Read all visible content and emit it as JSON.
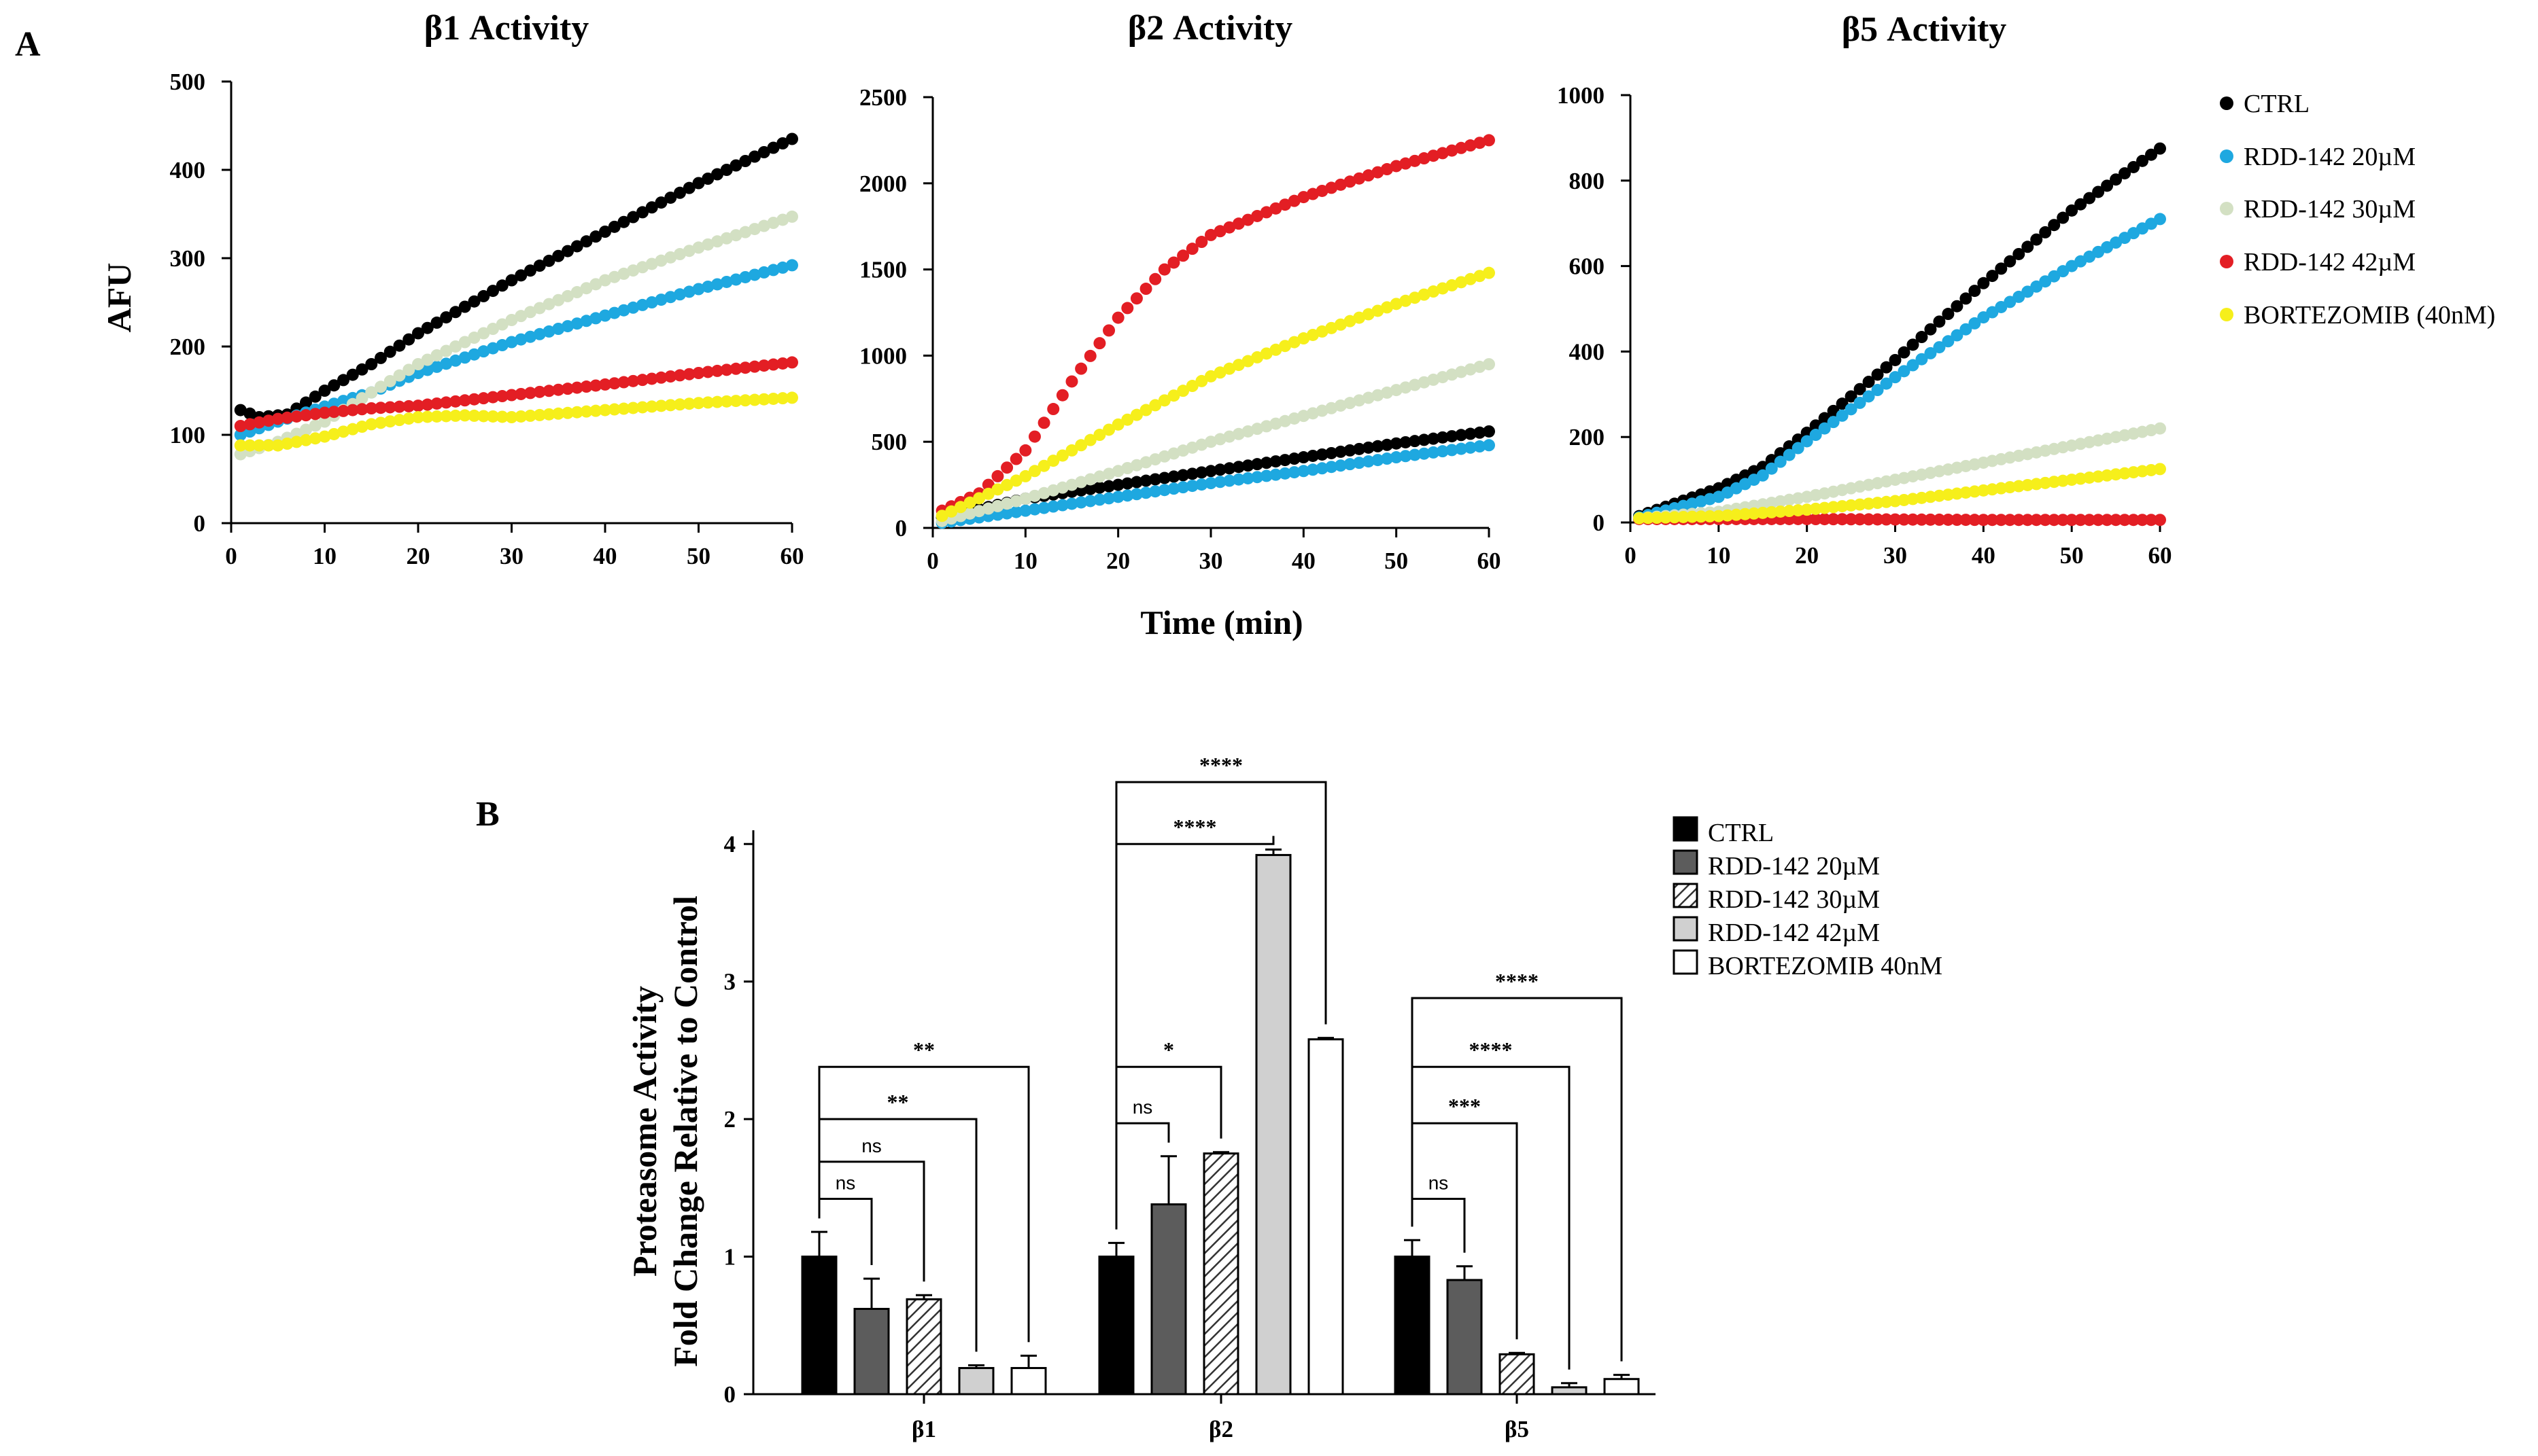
{
  "panel_labels": {
    "a": "A",
    "b": "B"
  },
  "hatch_color": "#333333",
  "chart_data": [
    {
      "type": "scatter",
      "title": "β1 Activity",
      "xlabel": "",
      "ylabel": "AFU",
      "xlim": [
        0,
        60
      ],
      "ylim": [
        0,
        500
      ],
      "xticks": [
        0,
        10,
        20,
        30,
        40,
        50,
        60
      ],
      "yticks": [
        0,
        100,
        200,
        300,
        400,
        500
      ],
      "series": [
        {
          "name": "CTRL",
          "color": "#000000",
          "curve": [
            [
              1,
              128
            ],
            [
              3,
              120
            ],
            [
              6,
              123
            ],
            [
              10,
              150
            ],
            [
              15,
              180
            ],
            [
              20,
              215
            ],
            [
              30,
              275
            ],
            [
              40,
              330
            ],
            [
              50,
              385
            ],
            [
              60,
              435
            ]
          ]
        },
        {
          "name": "RDD-142 20µM",
          "color": "#1ea8e0",
          "curve": [
            [
              1,
              100
            ],
            [
              5,
              115
            ],
            [
              10,
              132
            ],
            [
              15,
              148
            ],
            [
              20,
              170
            ],
            [
              30,
              205
            ],
            [
              40,
              235
            ],
            [
              50,
              265
            ],
            [
              60,
              292
            ]
          ]
        },
        {
          "name": "RDD-142 30µM",
          "color": "#d3e0c3",
          "curve": [
            [
              1,
              78
            ],
            [
              5,
              92
            ],
            [
              10,
              115
            ],
            [
              15,
              148
            ],
            [
              20,
              180
            ],
            [
              30,
              230
            ],
            [
              40,
              275
            ],
            [
              50,
              312
            ],
            [
              60,
              347
            ]
          ]
        },
        {
          "name": "RDD-142 42µM",
          "color": "#e31e24",
          "curve": [
            [
              1,
              110
            ],
            [
              5,
              118
            ],
            [
              10,
              125
            ],
            [
              15,
              130
            ],
            [
              20,
              133
            ],
            [
              30,
              145
            ],
            [
              40,
              157
            ],
            [
              50,
              170
            ],
            [
              60,
              182
            ]
          ]
        },
        {
          "name": "BORTEZOMIB (40nM)",
          "color": "#f6ef1b",
          "curve": [
            [
              1,
              88
            ],
            [
              5,
              88
            ],
            [
              10,
              98
            ],
            [
              15,
              112
            ],
            [
              20,
              120
            ],
            [
              25,
              122
            ],
            [
              30,
              120
            ],
            [
              40,
              128
            ],
            [
              50,
              136
            ],
            [
              60,
              142
            ]
          ]
        }
      ]
    },
    {
      "type": "scatter",
      "title": "β2 Activity",
      "xlabel": "Time (min)",
      "ylabel": "",
      "xlim": [
        0,
        60
      ],
      "ylim": [
        0,
        2500
      ],
      "xticks": [
        0,
        10,
        20,
        30,
        40,
        50,
        60
      ],
      "yticks": [
        0,
        500,
        1000,
        1500,
        2000,
        2500
      ],
      "series": [
        {
          "name": "CTRL",
          "color": "#000000",
          "curve": [
            [
              1,
              60
            ],
            [
              10,
              170
            ],
            [
              20,
              250
            ],
            [
              30,
              330
            ],
            [
              40,
              410
            ],
            [
              50,
              490
            ],
            [
              60,
              560
            ]
          ]
        },
        {
          "name": "RDD-142 20µM",
          "color": "#1ea8e0",
          "curve": [
            [
              1,
              30
            ],
            [
              10,
              100
            ],
            [
              20,
              180
            ],
            [
              30,
              260
            ],
            [
              40,
              330
            ],
            [
              50,
              410
            ],
            [
              60,
              480
            ]
          ]
        },
        {
          "name": "RDD-142 30µM",
          "color": "#d3e0c3",
          "curve": [
            [
              1,
              40
            ],
            [
              10,
              170
            ],
            [
              20,
              330
            ],
            [
              30,
              500
            ],
            [
              40,
              650
            ],
            [
              50,
              800
            ],
            [
              60,
              950
            ]
          ]
        },
        {
          "name": "RDD-142 42µM",
          "color": "#e31e24",
          "curve": [
            [
              1,
              100
            ],
            [
              5,
              200
            ],
            [
              10,
              450
            ],
            [
              15,
              850
            ],
            [
              20,
              1220
            ],
            [
              25,
              1500
            ],
            [
              30,
              1700
            ],
            [
              40,
              1920
            ],
            [
              50,
              2100
            ],
            [
              60,
              2250
            ]
          ]
        },
        {
          "name": "BORTEZOMIB (40nM)",
          "color": "#f6ef1b",
          "curve": [
            [
              1,
              70
            ],
            [
              10,
              300
            ],
            [
              20,
              600
            ],
            [
              30,
              880
            ],
            [
              40,
              1100
            ],
            [
              50,
              1300
            ],
            [
              60,
              1480
            ]
          ]
        }
      ]
    },
    {
      "type": "scatter",
      "title": "β5 Activity",
      "xlabel": "",
      "ylabel": "",
      "xlim": [
        0,
        60
      ],
      "ylim": [
        0,
        1000
      ],
      "xticks": [
        0,
        10,
        20,
        30,
        40,
        50,
        60
      ],
      "yticks": [
        0,
        200,
        400,
        600,
        800,
        1000
      ],
      "series": [
        {
          "name": "CTRL",
          "color": "#000000",
          "curve": [
            [
              1,
              15
            ],
            [
              10,
              80
            ],
            [
              15,
              130
            ],
            [
              20,
              210
            ],
            [
              30,
              380
            ],
            [
              40,
              560
            ],
            [
              50,
              730
            ],
            [
              60,
              875
            ]
          ]
        },
        {
          "name": "RDD-142 20µM",
          "color": "#1ea8e0",
          "curve": [
            [
              1,
              12
            ],
            [
              10,
              60
            ],
            [
              15,
              110
            ],
            [
              20,
              190
            ],
            [
              30,
              340
            ],
            [
              40,
              480
            ],
            [
              50,
              600
            ],
            [
              60,
              710
            ]
          ]
        },
        {
          "name": "RDD-142 30µM",
          "color": "#d3e0c3",
          "curve": [
            [
              1,
              10
            ],
            [
              10,
              25
            ],
            [
              20,
              60
            ],
            [
              30,
              100
            ],
            [
              40,
              140
            ],
            [
              50,
              180
            ],
            [
              60,
              220
            ]
          ]
        },
        {
          "name": "RDD-142 42µM",
          "color": "#e31e24",
          "curve": [
            [
              1,
              8
            ],
            [
              10,
              8
            ],
            [
              20,
              8
            ],
            [
              30,
              7
            ],
            [
              40,
              6
            ],
            [
              50,
              6
            ],
            [
              60,
              6
            ]
          ]
        },
        {
          "name": "BORTEZOMIB (40nM)",
          "color": "#f6ef1b",
          "curve": [
            [
              1,
              10
            ],
            [
              10,
              15
            ],
            [
              20,
              30
            ],
            [
              30,
              50
            ],
            [
              40,
              75
            ],
            [
              50,
              100
            ],
            [
              60,
              125
            ]
          ]
        }
      ]
    },
    {
      "type": "bar",
      "title": "",
      "xlabel": "",
      "ylabel": "Proteasome Activity",
      "ylabel2": "Fold Change Relative to Control",
      "ylim": [
        0,
        4.1
      ],
      "yticks": [
        0,
        1,
        2,
        3,
        4
      ],
      "categories": [
        "β1",
        "β2",
        "β5"
      ],
      "series": [
        {
          "name": "CTRL",
          "fill": "#000000",
          "hatch": false,
          "values": [
            1.0,
            1.0,
            1.0
          ],
          "errors": [
            0.18,
            0.1,
            0.12
          ]
        },
        {
          "name": "RDD-142 20µM",
          "fill": "#5c5c5c",
          "hatch": false,
          "values": [
            0.62,
            1.38,
            0.83
          ],
          "errors": [
            0.22,
            0.35,
            0.1
          ]
        },
        {
          "name": "RDD-142 30µM",
          "fill": "#ffffff",
          "hatch": true,
          "values": [
            0.69,
            1.75,
            0.29
          ],
          "errors": [
            0.03,
            0.01,
            0.01
          ]
        },
        {
          "name": "RDD-142 42µM",
          "fill": "#d0d0d0",
          "hatch": false,
          "values": [
            0.19,
            3.92,
            0.05
          ],
          "errors": [
            0.02,
            0.04,
            0.03
          ]
        },
        {
          "name": "BORTEZOMIB 40nM",
          "fill": "#ffffff",
          "hatch": false,
          "values": [
            0.19,
            2.58,
            0.11
          ],
          "errors": [
            0.09,
            0.01,
            0.03
          ]
        }
      ],
      "significance": [
        {
          "category": 0,
          "from": 0,
          "to": 1,
          "label": "ns",
          "level": 1.42
        },
        {
          "category": 0,
          "from": 0,
          "to": 2,
          "label": "ns",
          "level": 1.69
        },
        {
          "category": 0,
          "from": 0,
          "to": 3,
          "label": "**",
          "level": 2.0
        },
        {
          "category": 0,
          "from": 0,
          "to": 4,
          "label": "**",
          "level": 2.38
        },
        {
          "category": 1,
          "from": 0,
          "to": 1,
          "label": "ns",
          "level": 1.97
        },
        {
          "category": 1,
          "from": 0,
          "to": 2,
          "label": "*",
          "level": 2.38
        },
        {
          "category": 1,
          "from": 0,
          "to": 3,
          "label": "****",
          "level": 4.0
        },
        {
          "category": 1,
          "from": 0,
          "to": 4,
          "label": "****",
          "level": 4.45
        },
        {
          "category": 2,
          "from": 0,
          "to": 1,
          "label": "ns",
          "level": 1.42
        },
        {
          "category": 2,
          "from": 0,
          "to": 2,
          "label": "***",
          "level": 1.97
        },
        {
          "category": 2,
          "from": 0,
          "to": 3,
          "label": "****",
          "level": 2.38
        },
        {
          "category": 2,
          "from": 0,
          "to": 4,
          "label": "****",
          "level": 2.88
        }
      ]
    }
  ],
  "legend_a": [
    "CTRL",
    "RDD-142 20µM",
    "RDD-142 30µM",
    "RDD-142 42µM",
    "BORTEZOMIB (40nM)"
  ],
  "legend_b": [
    "CTRL",
    "RDD-142 20µM",
    "RDD-142 30µM",
    "RDD-142 42µM",
    "BORTEZOMIB 40nM"
  ]
}
